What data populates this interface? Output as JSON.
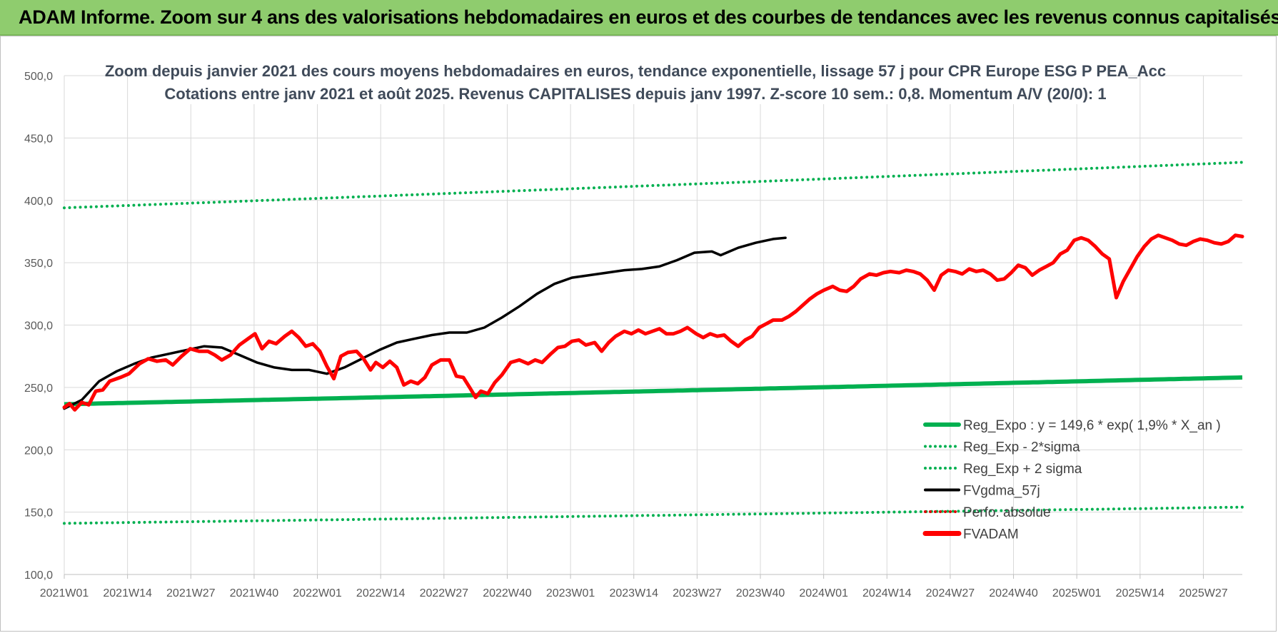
{
  "header": {
    "title": "ADAM Informe. Zoom sur 4 ans des valorisations hebdomadaires en euros et des courbes de tendances avec les revenus connus capitalisés"
  },
  "chart_data": {
    "type": "line",
    "title_line1": "Zoom depuis janvier 2021 des cours moyens hebdomadaires en euros, tendance exponentielle, lissage 57 j pour CPR Europe ESG P PEA_Acc",
    "title_line2": "Cotations entre janv 2021 et août 2025. Revenus CAPITALISES depuis janv 1997. Z-score 10 sem.: 0,8. Momentum A/V (20/0): 1",
    "xlabel": "",
    "ylabel": "",
    "ylim": [
      100,
      500
    ],
    "yticks": [
      "100,0",
      "150,0",
      "200,0",
      "250,0",
      "300,0",
      "350,0",
      "400,0",
      "450,0",
      "500,0"
    ],
    "x_tick_labels": [
      "2021W01",
      "2021W14",
      "2021W27",
      "2021W40",
      "2022W01",
      "2022W14",
      "2022W27",
      "2022W40",
      "2023W01",
      "2023W14",
      "2023W27",
      "2023W40",
      "2024W01",
      "2024W14",
      "2024W27",
      "2024W40",
      "2025W01",
      "2025W14",
      "2025W27"
    ],
    "weeks_count": 243,
    "grid": true,
    "legend_position": "bottom-right",
    "series": [
      {
        "name": "Reg_Expo : y = 149,6 * exp( 1,9% *  X_an )",
        "style": "solid",
        "color": "#00b050",
        "start": 236.5,
        "end": 258.0
      },
      {
        "name": "Reg_Exp - 2*sigma",
        "style": "dotted",
        "color": "#00b050",
        "start": 141.0,
        "end": 154.0
      },
      {
        "name": "Reg_Exp + 2 sigma",
        "style": "dotted",
        "color": "#00b050",
        "start": 394.0,
        "end": 430.5
      },
      {
        "name": "FVgdma_57j",
        "style": "solid",
        "color": "#000000",
        "points": [
          [
            0,
            233
          ],
          [
            10,
            240
          ],
          [
            20,
            255
          ],
          [
            30,
            263
          ],
          [
            40,
            269
          ],
          [
            50,
            274
          ],
          [
            60,
            277
          ],
          [
            70,
            280
          ],
          [
            80,
            283
          ],
          [
            90,
            282
          ],
          [
            100,
            276
          ],
          [
            110,
            270
          ],
          [
            120,
            266
          ],
          [
            130,
            264
          ],
          [
            140,
            264
          ],
          [
            150,
            261
          ],
          [
            160,
            266
          ],
          [
            170,
            273
          ],
          [
            180,
            280
          ],
          [
            190,
            286
          ],
          [
            200,
            289
          ],
          [
            210,
            292
          ],
          [
            220,
            294
          ],
          [
            230,
            294
          ],
          [
            240,
            298
          ],
          [
            250,
            306
          ],
          [
            260,
            315
          ],
          [
            270,
            325
          ],
          [
            280,
            333
          ],
          [
            290,
            338
          ],
          [
            300,
            340
          ],
          [
            310,
            342
          ],
          [
            320,
            344
          ],
          [
            330,
            345
          ],
          [
            340,
            347
          ],
          [
            350,
            352
          ],
          [
            360,
            358
          ],
          [
            370,
            359
          ],
          [
            375,
            356
          ],
          [
            385,
            362
          ],
          [
            395,
            366
          ],
          [
            405,
            369
          ],
          [
            412,
            370
          ]
        ]
      },
      {
        "name": "Perfo. absolue",
        "style": "dotted",
        "color": "#e00000"
      },
      {
        "name": "FVADAM",
        "style": "solid",
        "color": "#ff0000",
        "points": [
          [
            0,
            234
          ],
          [
            3,
            237
          ],
          [
            6,
            232
          ],
          [
            10,
            238
          ],
          [
            14,
            236
          ],
          [
            18,
            247
          ],
          [
            22,
            248
          ],
          [
            26,
            255
          ],
          [
            32,
            258
          ],
          [
            37,
            261
          ],
          [
            43,
            269
          ],
          [
            48,
            273
          ],
          [
            53,
            271
          ],
          [
            58,
            272
          ],
          [
            62,
            268
          ],
          [
            67,
            275
          ],
          [
            72,
            281
          ],
          [
            77,
            279
          ],
          [
            82,
            279
          ],
          [
            86,
            276
          ],
          [
            90,
            272
          ],
          [
            95,
            276
          ],
          [
            100,
            284
          ],
          [
            105,
            289
          ],
          [
            109,
            293
          ],
          [
            113,
            281
          ],
          [
            117,
            287
          ],
          [
            121,
            285
          ],
          [
            126,
            291
          ],
          [
            130,
            295
          ],
          [
            134,
            290
          ],
          [
            138,
            283
          ],
          [
            142,
            285
          ],
          [
            146,
            279
          ],
          [
            150,
            267
          ],
          [
            154,
            257
          ],
          [
            158,
            275
          ],
          [
            162,
            278
          ],
          [
            167,
            279
          ],
          [
            171,
            273
          ],
          [
            175,
            264
          ],
          [
            178,
            270
          ],
          [
            182,
            266
          ],
          [
            186,
            271
          ],
          [
            190,
            266
          ],
          [
            194,
            252
          ],
          [
            198,
            255
          ],
          [
            202,
            253
          ],
          [
            206,
            258
          ],
          [
            210,
            268
          ],
          [
            215,
            272
          ],
          [
            220,
            272
          ],
          [
            224,
            259
          ],
          [
            228,
            258
          ],
          [
            232,
            249
          ],
          [
            235,
            242
          ],
          [
            238,
            247
          ],
          [
            242,
            245
          ],
          [
            246,
            254
          ],
          [
            250,
            260
          ],
          [
            255,
            270
          ],
          [
            260,
            272
          ],
          [
            265,
            269
          ],
          [
            269,
            272
          ],
          [
            273,
            270
          ],
          [
            278,
            277
          ],
          [
            282,
            282
          ],
          [
            286,
            283
          ],
          [
            290,
            287
          ],
          [
            294,
            288
          ],
          [
            298,
            284
          ],
          [
            303,
            286
          ],
          [
            307,
            279
          ],
          [
            311,
            286
          ],
          [
            315,
            291
          ],
          [
            320,
            295
          ],
          [
            324,
            293
          ],
          [
            328,
            296
          ],
          [
            332,
            293
          ],
          [
            336,
            295
          ],
          [
            340,
            297
          ],
          [
            344,
            293
          ],
          [
            348,
            293
          ],
          [
            352,
            295
          ],
          [
            356,
            298
          ],
          [
            361,
            293
          ],
          [
            365,
            290
          ],
          [
            369,
            293
          ],
          [
            373,
            291
          ],
          [
            377,
            292
          ],
          [
            381,
            287
          ],
          [
            385,
            283
          ],
          [
            389,
            288
          ],
          [
            393,
            291
          ],
          [
            397,
            298
          ],
          [
            401,
            301
          ],
          [
            405,
            304
          ],
          [
            410,
            304
          ],
          [
            414,
            307
          ],
          [
            418,
            311
          ],
          [
            422,
            316
          ],
          [
            426,
            321
          ],
          [
            430,
            325
          ],
          [
            434,
            328
          ],
          [
            439,
            331
          ],
          [
            443,
            328
          ],
          [
            447,
            327
          ],
          [
            451,
            331
          ],
          [
            455,
            337
          ],
          [
            460,
            341
          ],
          [
            464,
            340
          ],
          [
            468,
            342
          ],
          [
            472,
            343
          ],
          [
            477,
            342
          ],
          [
            481,
            344
          ],
          [
            485,
            343
          ],
          [
            489,
            341
          ],
          [
            493,
            336
          ],
          [
            497,
            328
          ],
          [
            501,
            340
          ],
          [
            505,
            344
          ],
          [
            509,
            343
          ],
          [
            513,
            341
          ],
          [
            517,
            345
          ],
          [
            521,
            343
          ],
          [
            525,
            344
          ],
          [
            529,
            341
          ],
          [
            533,
            336
          ],
          [
            537,
            337
          ],
          [
            541,
            342
          ],
          [
            545,
            348
          ],
          [
            549,
            346
          ],
          [
            553,
            340
          ],
          [
            557,
            344
          ],
          [
            561,
            347
          ],
          [
            565,
            350
          ],
          [
            569,
            357
          ],
          [
            573,
            360
          ],
          [
            577,
            368
          ],
          [
            581,
            370
          ],
          [
            585,
            368
          ],
          [
            589,
            363
          ],
          [
            593,
            357
          ],
          [
            597,
            353
          ],
          [
            601,
            322
          ],
          [
            605,
            335
          ],
          [
            609,
            345
          ],
          [
            613,
            355
          ],
          [
            617,
            363
          ],
          [
            621,
            369
          ],
          [
            625,
            372
          ],
          [
            629,
            370
          ],
          [
            633,
            368
          ],
          [
            637,
            365
          ],
          [
            641,
            364
          ],
          [
            645,
            367
          ],
          [
            649,
            369
          ],
          [
            653,
            368
          ],
          [
            657,
            366
          ],
          [
            661,
            365
          ],
          [
            665,
            367
          ],
          [
            669,
            372
          ],
          [
            673,
            371
          ]
        ]
      }
    ]
  }
}
